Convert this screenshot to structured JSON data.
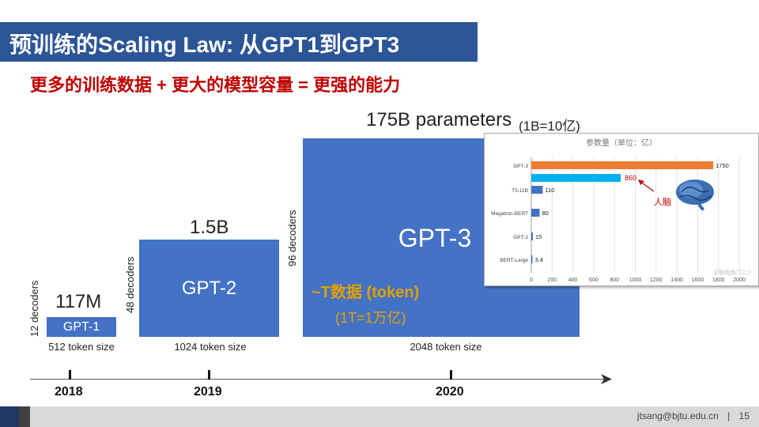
{
  "title": "预训练的Scaling Law: 从GPT1到GPT3",
  "subtitle": "更多的训练数据 + 更大的模型容量 = 更强的能力",
  "models": [
    {
      "name": "GPT-1",
      "size": "117M",
      "decoders": "12 decoders",
      "tokens": "512 token size",
      "year": "2018"
    },
    {
      "name": "GPT-2",
      "size": "1.5B",
      "decoders": "48 decoders",
      "tokens": "1024 token size",
      "year": "2019"
    },
    {
      "name": "GPT-3",
      "size": "175B parameters",
      "size_note": "(1B=10亿)",
      "decoders": "96 decoders",
      "tokens": "2048 token size",
      "year": "2020"
    }
  ],
  "data_note": {
    "main": "~T数据 (token)",
    "sub": "(1T=1万亿)"
  },
  "footer": {
    "email": "jtsang@bjtu.edu.cn",
    "separator": "|",
    "page": "15"
  },
  "colors": {
    "title_bar": "#2c5597",
    "box": "#4472c4",
    "subtitle": "#c00000",
    "data_note": "#e0a000",
    "gpt3_bar": "#ed7d31",
    "brain_bar": "#00b0f0",
    "bar": "#4472c4"
  },
  "chart_data": {
    "type": "bar",
    "orientation": "horizontal",
    "title": "参数量（单位：亿）",
    "categories": [
      "GPT-3",
      "T5-11B",
      "Megatron-BERT",
      "GPT-2",
      "BERT-Large"
    ],
    "values": [
      1750,
      110,
      80,
      15,
      3.4
    ],
    "data_labels": [
      "1750",
      "110",
      "80",
      "15",
      "3.4"
    ],
    "annotation": {
      "value": 860,
      "label": "860",
      "text": "人脑"
    },
    "xlim": [
      0,
      2000
    ],
    "xticks": [
      "0",
      "200",
      "400",
      "600",
      "800",
      "1000",
      "1200",
      "1400",
      "1600",
      "1800",
      "2000"
    ],
    "grid": true,
    "watermark": "互联网西门二少"
  }
}
